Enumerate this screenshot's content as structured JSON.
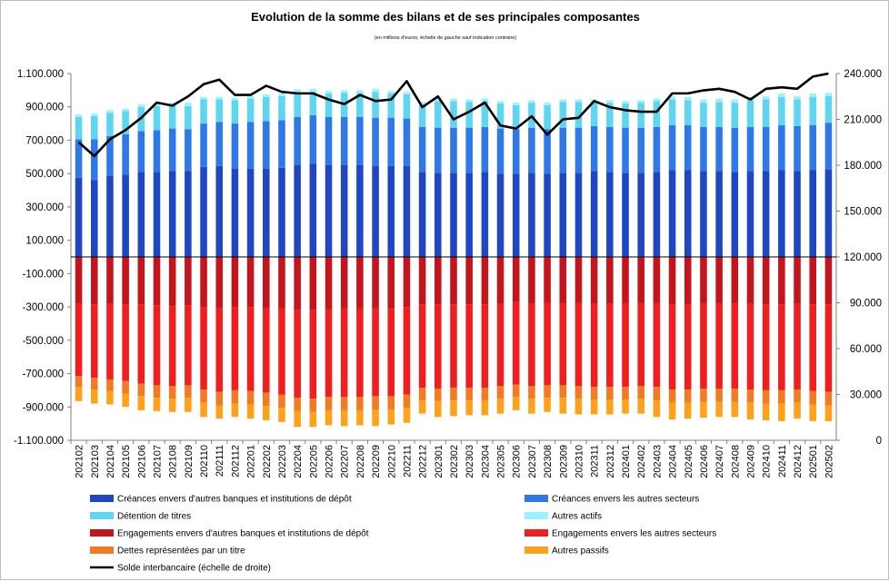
{
  "chart_data": {
    "type": "bar",
    "stacked": true,
    "title": "Evolution de la somme des bilans et de ses principales composantes",
    "subtitle": "(en millions d'euros; échelle de gauche sauf indication contraire)",
    "categories": [
      "202102",
      "202103",
      "202104",
      "202105",
      "202106",
      "202107",
      "202108",
      "202109",
      "202110",
      "202111",
      "202112",
      "202201",
      "202202",
      "202203",
      "202204",
      "202205",
      "202206",
      "202207",
      "202208",
      "202209",
      "202210",
      "202211",
      "202212",
      "202301",
      "202302",
      "202303",
      "202304",
      "202305",
      "202306",
      "202307",
      "202308",
      "202309",
      "202310",
      "202311",
      "202312",
      "202401",
      "202402",
      "202403",
      "202404",
      "202405",
      "202406",
      "202407",
      "202408",
      "202409",
      "202410",
      "202411",
      "202412",
      "202501",
      "202502"
    ],
    "y_left": {
      "min": -1100000,
      "max": 1100000,
      "step": 200000,
      "tick_labels": [
        "1.100.000",
        "900.000",
        "700.000",
        "500.000",
        "300.000",
        "100.000",
        "-100.000",
        "-300.000",
        "-500.000",
        "-700.000",
        "-900.000",
        "-1.100.000"
      ]
    },
    "y_right": {
      "min": 0,
      "max": 240000,
      "step": 30000,
      "tick_labels": [
        "240.000",
        "210.000",
        "180.000",
        "150.000",
        "120.000",
        "90.000",
        "60.000",
        "30.000",
        "0"
      ]
    },
    "series": [
      {
        "name": "Créances envers d'autres banques et institutions de dépôt",
        "color": "#1f47c4",
        "values": [
          475000,
          460000,
          485000,
          495000,
          510000,
          510000,
          515000,
          515000,
          540000,
          545000,
          530000,
          530000,
          530000,
          535000,
          550000,
          560000,
          550000,
          550000,
          550000,
          545000,
          545000,
          545000,
          510000,
          505000,
          505000,
          505000,
          510000,
          500000,
          500000,
          505000,
          500000,
          505000,
          505000,
          515000,
          510000,
          505000,
          505000,
          510000,
          520000,
          520000,
          515000,
          515000,
          510000,
          515000,
          515000,
          520000,
          515000,
          520000,
          525000
        ]
      },
      {
        "name": "Créances envers les autres secteurs",
        "color": "#2f78e8",
        "values": [
          230000,
          245000,
          240000,
          240000,
          245000,
          250000,
          255000,
          250000,
          260000,
          265000,
          270000,
          280000,
          285000,
          285000,
          290000,
          290000,
          290000,
          290000,
          290000,
          290000,
          290000,
          285000,
          270000,
          270000,
          270000,
          270000,
          270000,
          270000,
          265000,
          270000,
          265000,
          270000,
          270000,
          270000,
          270000,
          270000,
          270000,
          270000,
          270000,
          270000,
          265000,
          265000,
          265000,
          265000,
          265000,
          270000,
          270000,
          270000,
          280000
        ]
      },
      {
        "name": "Détention de titres",
        "color": "#5fd6f0",
        "values": [
          135000,
          140000,
          140000,
          140000,
          145000,
          145000,
          140000,
          140000,
          145000,
          135000,
          140000,
          140000,
          145000,
          145000,
          145000,
          140000,
          140000,
          145000,
          145000,
          155000,
          145000,
          145000,
          135000,
          160000,
          160000,
          155000,
          155000,
          150000,
          145000,
          150000,
          145000,
          155000,
          155000,
          145000,
          145000,
          145000,
          150000,
          155000,
          155000,
          150000,
          145000,
          150000,
          150000,
          160000,
          165000,
          170000,
          160000,
          170000,
          160000
        ]
      },
      {
        "name": "Autres actifs",
        "color": "#9af3ff",
        "values": [
          15000,
          15000,
          15000,
          15000,
          15000,
          15000,
          15000,
          20000,
          15000,
          15000,
          15000,
          15000,
          15000,
          15000,
          20000,
          20000,
          15000,
          15000,
          15000,
          20000,
          15000,
          15000,
          15000,
          15000,
          15000,
          15000,
          15000,
          15000,
          15000,
          15000,
          15000,
          15000,
          15000,
          15000,
          15000,
          15000,
          15000,
          15000,
          20000,
          20000,
          20000,
          20000,
          20000,
          20000,
          20000,
          20000,
          20000,
          20000,
          20000
        ]
      },
      {
        "name": "Engagements envers d'autres banques et institutions de dépôt",
        "color": "#c4141c",
        "values": [
          -280000,
          -285000,
          -280000,
          -285000,
          -285000,
          -290000,
          -295000,
          -290000,
          -300000,
          -305000,
          -300000,
          -300000,
          -305000,
          -310000,
          -320000,
          -320000,
          -315000,
          -310000,
          -310000,
          -305000,
          -305000,
          -300000,
          -285000,
          -285000,
          -285000,
          -285000,
          -285000,
          -280000,
          -270000,
          -280000,
          -275000,
          -275000,
          -275000,
          -280000,
          -280000,
          -280000,
          -275000,
          -280000,
          -285000,
          -285000,
          -280000,
          -280000,
          -280000,
          -280000,
          -285000,
          -285000,
          -280000,
          -285000,
          -285000
        ]
      },
      {
        "name": "Engagements envers les autres secteurs",
        "color": "#f01e1e",
        "values": [
          -435000,
          -440000,
          -455000,
          -460000,
          -475000,
          -480000,
          -480000,
          -480000,
          -495000,
          -505000,
          -500000,
          -505000,
          -510000,
          -515000,
          -525000,
          -530000,
          -525000,
          -530000,
          -530000,
          -530000,
          -530000,
          -525000,
          -500000,
          -505000,
          -500000,
          -500000,
          -500000,
          -495000,
          -495000,
          -495000,
          -495000,
          -495000,
          -500000,
          -500000,
          -500000,
          -500000,
          -500000,
          -500000,
          -510000,
          -510000,
          -510000,
          -510000,
          -510000,
          -515000,
          -515000,
          -515000,
          -515000,
          -520000,
          -525000
        ]
      },
      {
        "name": "Dettes représentées par un titre",
        "color": "#f27a22",
        "values": [
          -65000,
          -70000,
          -70000,
          -75000,
          -75000,
          -75000,
          -75000,
          -75000,
          -80000,
          -80000,
          -80000,
          -80000,
          -80000,
          -80000,
          -80000,
          -80000,
          -80000,
          -80000,
          -80000,
          -80000,
          -80000,
          -80000,
          -75000,
          -75000,
          -75000,
          -75000,
          -75000,
          -75000,
          -75000,
          -75000,
          -75000,
          -75000,
          -75000,
          -75000,
          -75000,
          -75000,
          -75000,
          -80000,
          -80000,
          -80000,
          -80000,
          -80000,
          -80000,
          -80000,
          -80000,
          -80000,
          -80000,
          -80000,
          -80000
        ]
      },
      {
        "name": "Autres passifs",
        "color": "#ffa21a",
        "values": [
          -85000,
          -85000,
          -80000,
          -80000,
          -85000,
          -80000,
          -80000,
          -85000,
          -85000,
          -80000,
          -80000,
          -85000,
          -85000,
          -85000,
          -95000,
          -90000,
          -90000,
          -95000,
          -90000,
          -100000,
          -90000,
          -90000,
          -80000,
          -95000,
          -95000,
          -90000,
          -90000,
          -90000,
          -80000,
          -90000,
          -85000,
          -95000,
          -95000,
          -90000,
          -90000,
          -85000,
          -90000,
          -100000,
          -100000,
          -95000,
          -95000,
          -90000,
          -90000,
          -100000,
          -100000,
          -105000,
          -95000,
          -100000,
          -95000
        ]
      }
    ],
    "line": {
      "name": "Solde interbancaire (échelle de droite)",
      "axis": "right",
      "color": "#000000",
      "values": [
        195000,
        186000,
        197000,
        203000,
        211000,
        221000,
        219000,
        225000,
        233000,
        236000,
        226000,
        226000,
        232000,
        228000,
        227000,
        227000,
        223000,
        220000,
        226000,
        222000,
        223000,
        235000,
        218000,
        225000,
        210000,
        215000,
        221000,
        206000,
        204000,
        212000,
        200000,
        210000,
        211000,
        222000,
        218000,
        216000,
        215000,
        215000,
        227000,
        227000,
        229000,
        230000,
        228000,
        223000,
        230000,
        231000,
        230000,
        238000,
        240000
      ]
    },
    "legend_position": "bottom",
    "grid": false
  }
}
